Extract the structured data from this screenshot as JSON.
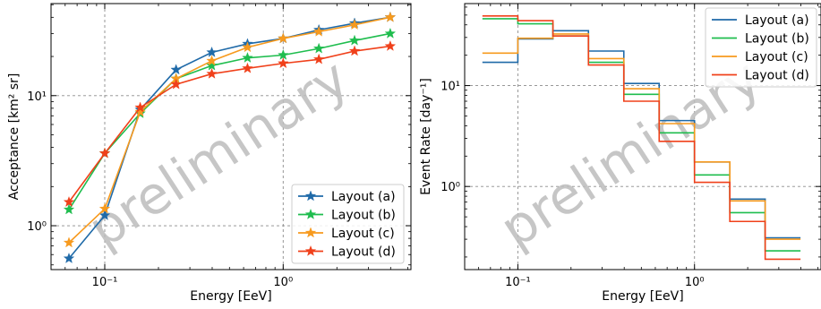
{
  "chart_data": [
    {
      "type": "line",
      "xlabel": "Energy [EeV]",
      "ylabel": "Acceptance [km² sr]",
      "xscale": "log",
      "yscale": "log",
      "xlim": [
        0.05,
        5.2
      ],
      "ylim": [
        0.46,
        51
      ],
      "xticks": [
        {
          "value": 0.1,
          "label": "10⁻¹"
        },
        {
          "value": 1,
          "label": "10⁰"
        }
      ],
      "yticks": [
        {
          "value": 1,
          "label": "10⁰"
        },
        {
          "value": 10,
          "label": "10¹"
        }
      ],
      "grid": true,
      "legend_position": "lower-right",
      "watermark": "preliminary",
      "x": [
        0.063,
        0.1,
        0.158,
        0.251,
        0.398,
        0.631,
        1.0,
        1.585,
        2.512,
        3.981
      ],
      "series": [
        {
          "name": "Layout (a)",
          "color": "#1f6aa8",
          "values": [
            0.56,
            1.2,
            7.8,
            15.8,
            21.5,
            25,
            27.5,
            32,
            36,
            40
          ]
        },
        {
          "name": "Layout (b)",
          "color": "#1fbd4e",
          "values": [
            1.33,
            3.6,
            7.3,
            13.5,
            17,
            19.5,
            20.5,
            23,
            26.5,
            30
          ]
        },
        {
          "name": "Layout (c)",
          "color": "#f79a1e",
          "values": [
            0.74,
            1.35,
            7.5,
            13.5,
            18.5,
            23.5,
            27.5,
            31,
            35,
            40
          ]
        },
        {
          "name": "Layout (d)",
          "color": "#f0401a",
          "values": [
            1.52,
            3.6,
            8.1,
            12.2,
            14.7,
            16.2,
            17.7,
            19,
            22,
            24
          ]
        }
      ]
    },
    {
      "type": "step",
      "xlabel": "Energy [EeV]",
      "ylabel": "Event Rate [day⁻¹]",
      "xscale": "log",
      "yscale": "log",
      "xlim": [
        0.05,
        5.2
      ],
      "ylim": [
        0.15,
        65
      ],
      "xticks": [
        {
          "value": 0.1,
          "label": "10⁻¹"
        },
        {
          "value": 1,
          "label": "10⁰"
        }
      ],
      "yticks": [
        {
          "value": 1,
          "label": "10⁰"
        },
        {
          "value": 10,
          "label": "10¹"
        }
      ],
      "grid": true,
      "legend_position": "top-right",
      "watermark": "preliminary",
      "bin_edges": [
        0.063,
        0.1,
        0.158,
        0.251,
        0.398,
        0.631,
        1.0,
        1.585,
        2.512,
        3.981
      ],
      "series": [
        {
          "name": "Layout (a)",
          "color": "#1f6aa8",
          "values": [
            17,
            29,
            35,
            22,
            10.5,
            4.5,
            1.75,
            0.75,
            0.31
          ]
        },
        {
          "name": "Layout (b)",
          "color": "#1fbd4e",
          "values": [
            46,
            41,
            31,
            17,
            8.2,
            3.4,
            1.3,
            0.55,
            0.23
          ]
        },
        {
          "name": "Layout (c)",
          "color": "#f79a1e",
          "values": [
            21,
            29.5,
            32.5,
            18.5,
            9.3,
            4.2,
            1.75,
            0.72,
            0.3
          ]
        },
        {
          "name": "Layout (d)",
          "color": "#f0401a",
          "values": [
            49,
            44,
            31,
            16,
            7,
            2.8,
            1.1,
            0.45,
            0.19
          ]
        }
      ]
    }
  ]
}
